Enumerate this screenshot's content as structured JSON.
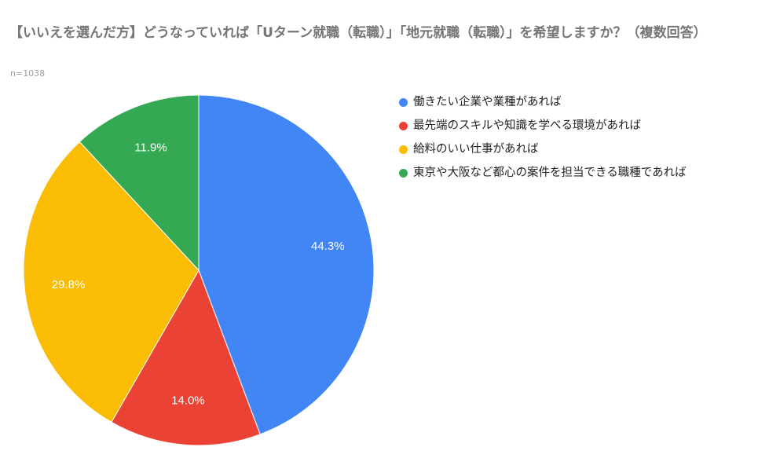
{
  "chart_data": {
    "type": "pie",
    "title": "【いいえを選んだ方】どうなっていれば「Uターン就職（転職）」「地元就職（転職）」を希望しますか？（複数回答）",
    "subtitle": "n=1038",
    "slices": [
      {
        "label": "働きたい企業や業種があれば",
        "value": 44.3,
        "display": "44.3%",
        "color": "#4285f4"
      },
      {
        "label": "最先端のスキルや知識を学べる環境があれば",
        "value": 14.0,
        "display": "14.0%",
        "color": "#ea4335"
      },
      {
        "label": "給料のいい仕事があれば",
        "value": 29.8,
        "display": "29.8%",
        "color": "#fbbc04"
      },
      {
        "label": "東京や大阪など都心の案件を担当できる職種であれば",
        "value": 11.9,
        "display": "11.9%",
        "color": "#34a853"
      }
    ],
    "legend_position": "right"
  }
}
